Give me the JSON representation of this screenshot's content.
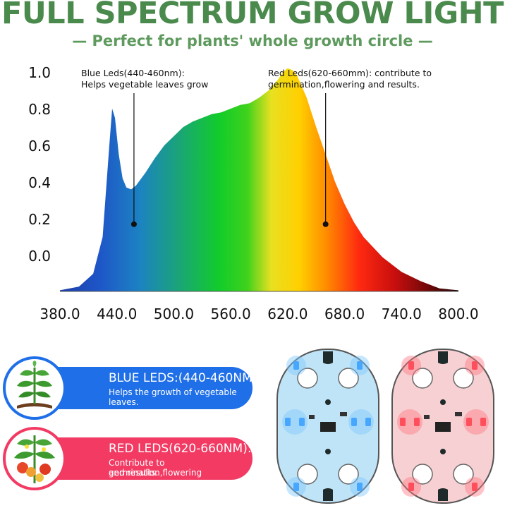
{
  "header": {
    "title": "FULL SPECTRUM GROW LIGHT",
    "subtitle": "— Perfect for plants' whole growth circle —"
  },
  "chart_data": {
    "type": "area",
    "title": "",
    "xlabel": "",
    "ylabel": "",
    "x_ticks": [
      "380.0",
      "440.0",
      "500.0",
      "560.0",
      "620.0",
      "680.0",
      "740.0",
      "800.0"
    ],
    "y_ticks": [
      "1.0",
      "0.8",
      "0.6",
      "0.4",
      "0.2",
      "0.0"
    ],
    "xlim": [
      380,
      800
    ],
    "grid": false,
    "legend": "none",
    "series": [
      {
        "x": [
          380,
          400,
          415,
          425,
          432,
          435,
          438,
          442,
          446,
          450,
          455,
          460,
          470,
          480,
          490,
          500,
          510,
          520,
          530,
          540,
          550,
          560,
          570,
          580,
          590,
          600,
          610,
          615,
          620,
          625,
          630,
          640,
          650,
          660,
          670,
          680,
          690,
          700,
          720,
          740,
          760,
          780,
          800
        ],
        "y": [
          -0.19,
          -0.17,
          -0.1,
          0.1,
          0.6,
          0.8,
          0.75,
          0.55,
          0.42,
          0.37,
          0.36,
          0.38,
          0.45,
          0.53,
          0.6,
          0.65,
          0.7,
          0.73,
          0.75,
          0.77,
          0.78,
          0.8,
          0.82,
          0.83,
          0.86,
          0.9,
          0.96,
          1.0,
          1.02,
          1.01,
          0.98,
          0.86,
          0.7,
          0.55,
          0.4,
          0.28,
          0.18,
          0.1,
          -0.01,
          -0.09,
          -0.14,
          -0.18,
          -0.19
        ]
      }
    ],
    "annotations": [
      {
        "text_line1": "Blue Leds(440-460nm):",
        "text_line2": "Helps vegetable leaves grow",
        "x": 458,
        "y": 0.17
      },
      {
        "text_line1": "Red Leds(620-660mm): contribute to",
        "text_line2": "germination,flowering and results.",
        "x": 660,
        "y": 0.17
      }
    ]
  },
  "legend_cards": {
    "blue": {
      "heading": "BLUE LEDS:(440-460NM):",
      "description": "Helps the growth of vegetable leaves.",
      "color": "#1f6fe8",
      "icon": "seedling-icon"
    },
    "red": {
      "heading": "RED LEDS(620-660NM):",
      "description_line1": "Contribute to germination,flowering",
      "description_line2": "and results.",
      "color": "#f23a63",
      "icon": "tomato-plant-icon"
    }
  },
  "boards": [
    {
      "name": "blue-led-board",
      "led_color": "#1a8cff"
    },
    {
      "name": "red-led-board",
      "led_color": "#ff2a3a"
    }
  ]
}
